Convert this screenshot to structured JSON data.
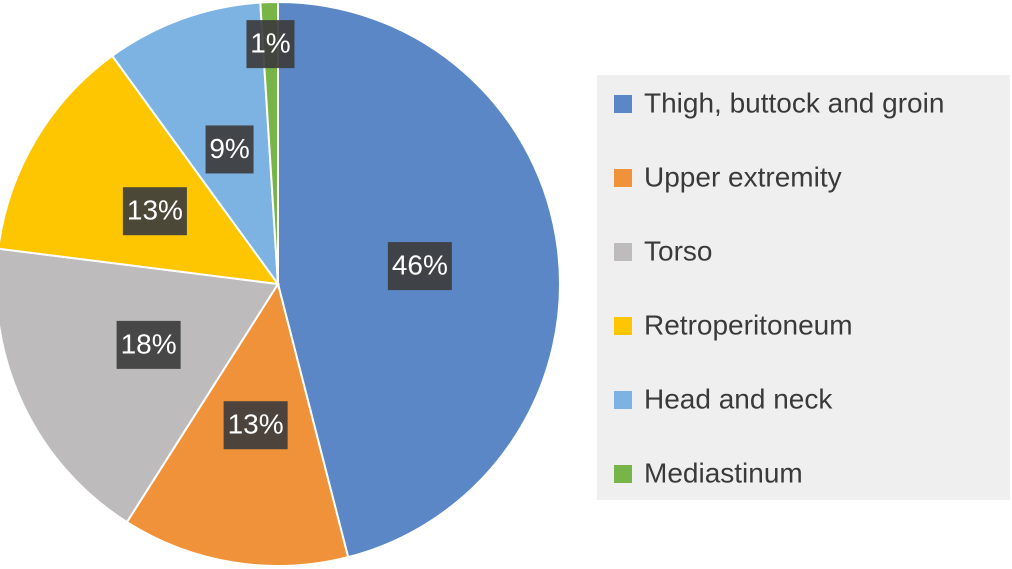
{
  "chart_data": {
    "type": "pie",
    "categories": [
      "Thigh, buttock and groin",
      "Upper extremity",
      "Torso",
      "Retroperitoneum",
      "Head and neck",
      "Mediastinum"
    ],
    "values": [
      46,
      13,
      18,
      13,
      9,
      1
    ],
    "value_labels": [
      "46%",
      "13%",
      "18%",
      "13%",
      "9%",
      "1%"
    ],
    "colors": [
      "#5b87c7",
      "#f0923a",
      "#bdbbbb",
      "#fdc600",
      "#7db3e3",
      "#78b548"
    ],
    "legend": "right"
  }
}
